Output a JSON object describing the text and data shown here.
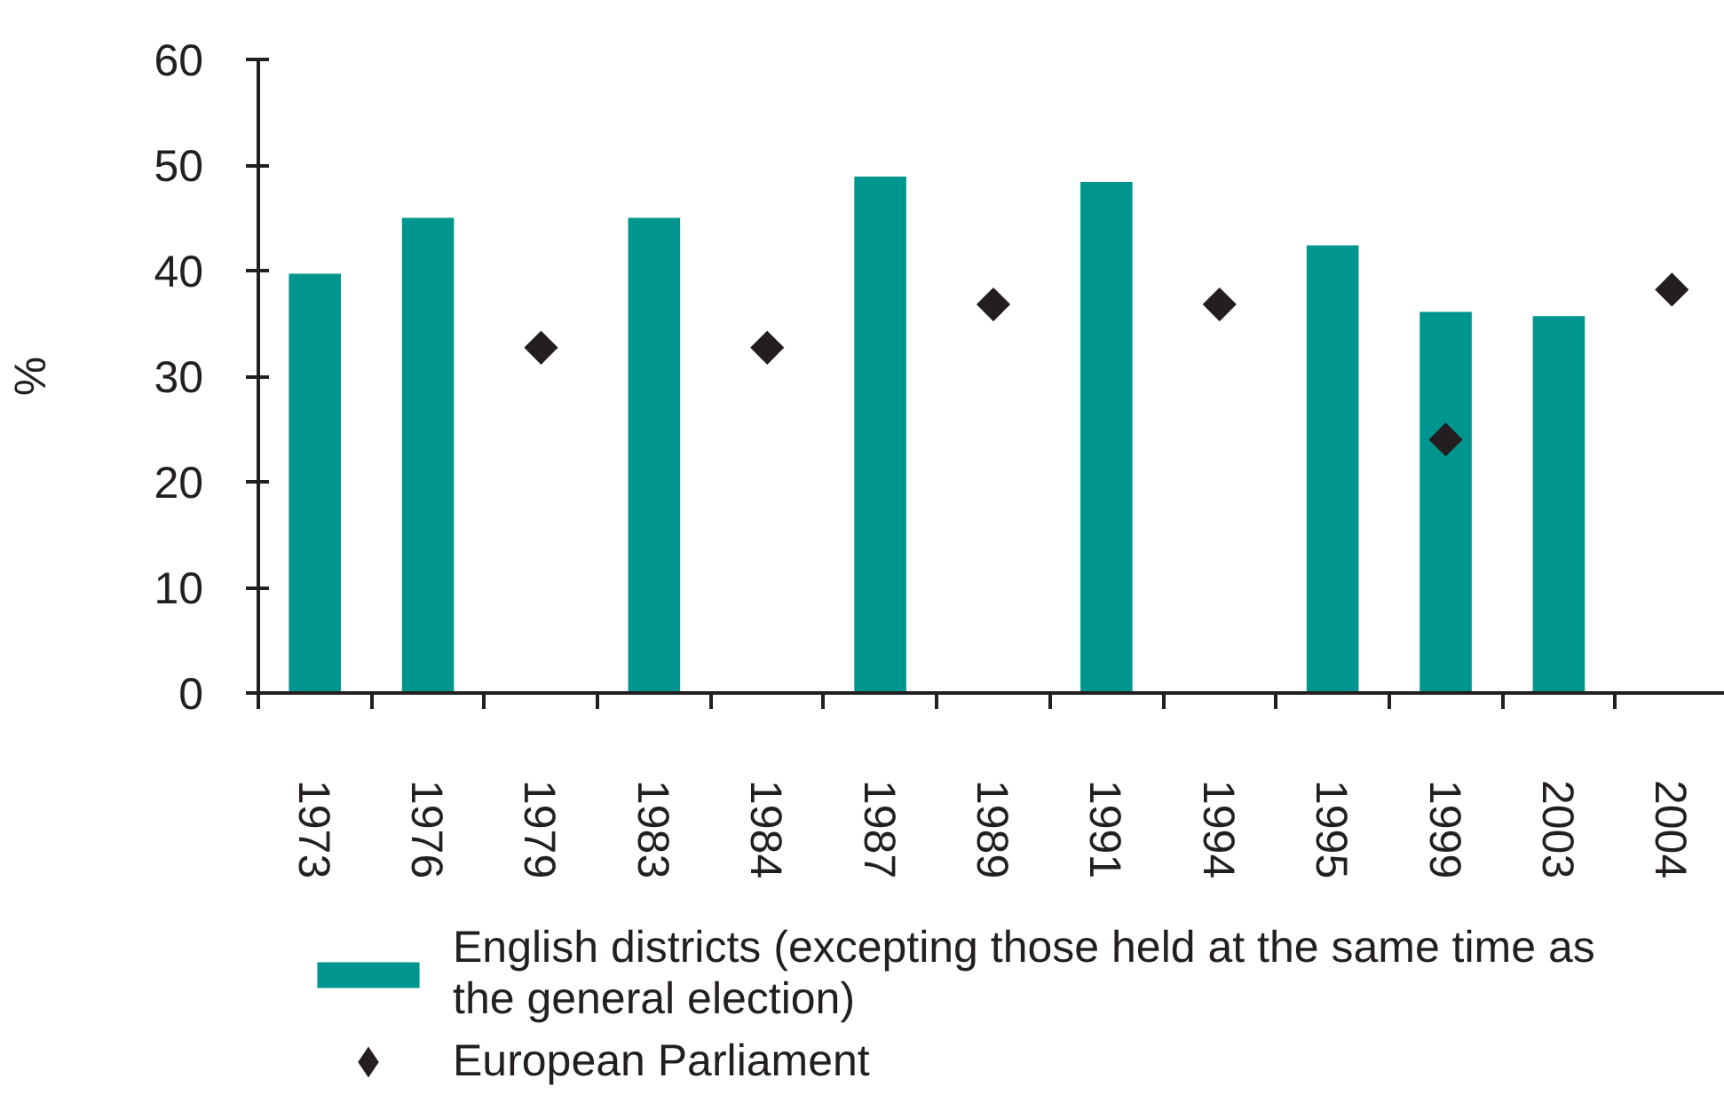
{
  "chart_data": {
    "type": "bar",
    "ylabel": "%",
    "categories": [
      "1973",
      "1976",
      "1979",
      "1983",
      "1984",
      "1987",
      "1989",
      "1991",
      "1994",
      "1995",
      "1999",
      "2003",
      "2004"
    ],
    "series": [
      {
        "name": "English districts (excepting those held at the same time as the general election)",
        "color": "#00968f",
        "values": [
          39.7,
          45.0,
          null,
          45.0,
          null,
          48.9,
          null,
          48.4,
          null,
          42.4,
          36.1,
          35.7,
          null
        ]
      },
      {
        "name": "European Parliament",
        "type": "scatter",
        "color": "#231f20",
        "values": [
          null,
          null,
          32.7,
          null,
          32.7,
          null,
          36.8,
          null,
          36.8,
          null,
          24.0,
          null,
          38.2
        ]
      }
    ],
    "ylim": [
      0,
      60
    ],
    "yticks": [
      0,
      10,
      20,
      30,
      40,
      50,
      60
    ],
    "legend": "bottom",
    "marker": "diamond"
  }
}
